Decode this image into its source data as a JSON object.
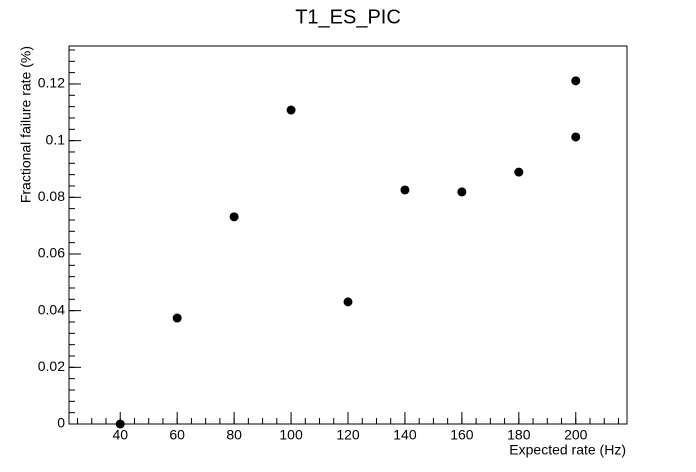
{
  "chart_data": {
    "type": "scatter",
    "title": "T1_ES_PIC",
    "x_label": "Expected rate (Hz)",
    "y_label": "Fractional failure rate (%)",
    "color": "#000000",
    "x": [
      40,
      60,
      80,
      100,
      120,
      140,
      160,
      180,
      200,
      200
    ],
    "values": [
      0,
      0.0374,
      0.0731,
      0.1108,
      0.0431,
      0.0826,
      0.0819,
      0.0889,
      0.1013,
      0.1211
    ],
    "xlim": [
      22,
      218
    ],
    "xticks": [
      40,
      60,
      80,
      100,
      120,
      140,
      160,
      180,
      200
    ],
    "ylim": [
      0,
      0.1334
    ],
    "yticks": [
      0,
      0.02,
      0.04,
      0.06,
      0.08,
      0.1,
      0.12
    ]
  }
}
